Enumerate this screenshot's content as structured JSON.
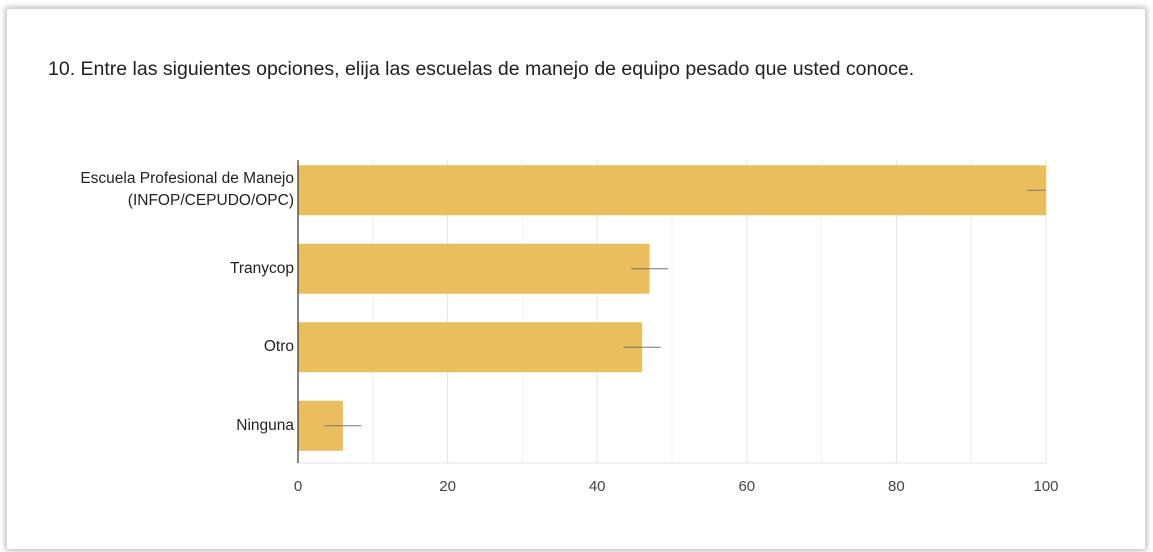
{
  "chart_data": {
    "type": "bar",
    "orientation": "horizontal",
    "title": "10. Entre las siguientes opciones, elija las escuelas de manejo de equipo pesado que usted conoce.",
    "categories": [
      "Escuela Profesional de Manejo (INFOP/CEPUDO/OPC)",
      "Tranycop",
      "Otro",
      "Ninguna"
    ],
    "values": [
      100,
      47,
      46,
      6
    ],
    "errors": [
      2.5,
      2.5,
      2.5,
      2.5
    ],
    "color": "#eabe5d",
    "xlim": [
      0,
      100
    ],
    "xticks": [
      0,
      20,
      40,
      60,
      80,
      100
    ],
    "minor_grid": [
      10,
      30,
      50,
      70,
      90
    ],
    "grid": true
  }
}
